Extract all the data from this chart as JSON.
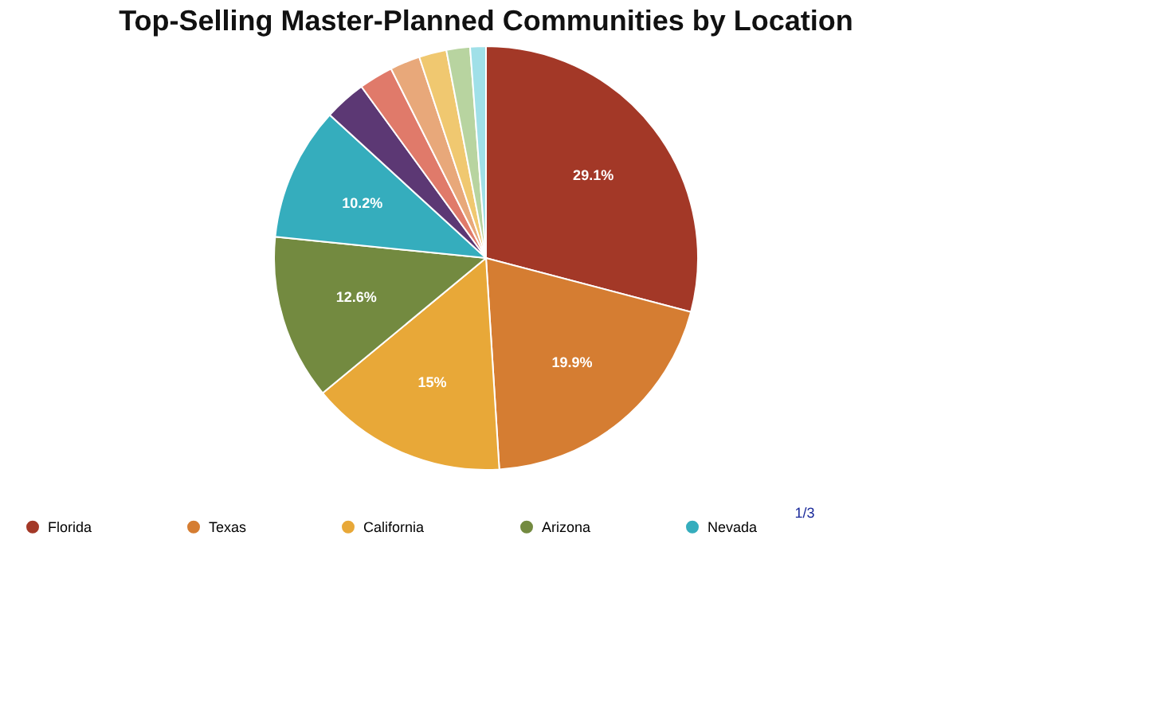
{
  "chart_data": {
    "type": "pie",
    "title": "Top-Selling Master-Planned Communities by Location",
    "categories": [
      "Florida",
      "Texas",
      "California",
      "Arizona",
      "Nevada",
      null,
      null,
      null,
      null,
      null,
      null
    ],
    "values": [
      29.1,
      19.9,
      15,
      12.6,
      10.2,
      3.2,
      2.6,
      2.3,
      2.1,
      1.8,
      1.2
    ],
    "colors": [
      "#a33827",
      "#d57d32",
      "#e8a838",
      "#738a40",
      "#35adbd",
      "#5c3874",
      "#e07a6a",
      "#e8a87a",
      "#f0c870",
      "#b8d4a0",
      "#a0e0e8"
    ],
    "value_labels": [
      "29.1%",
      "19.9%",
      "15%",
      "12.6%",
      "10.2%",
      null,
      null,
      null,
      null,
      null,
      null
    ],
    "legend": "bottom",
    "annotations": [
      "1/3"
    ]
  }
}
